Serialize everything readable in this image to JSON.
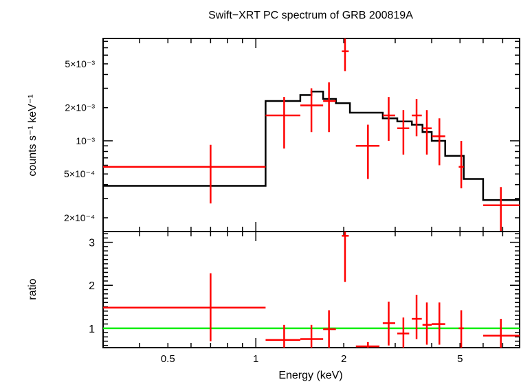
{
  "chart_data": [
    {
      "type": "scatter",
      "title": "Swift−XRT PC spectrum of GRB 200819A",
      "ylabel": "counts s⁻¹ keV⁻¹",
      "yscale": "log",
      "xscale": "log",
      "xlim": [
        0.3,
        8.0
      ],
      "ylim": [
        0.00015,
        0.0085
      ],
      "ytick_labels": [
        {
          "value": 0.005,
          "label": "5×10⁻³"
        },
        {
          "value": 0.002,
          "label": "2×10⁻³"
        },
        {
          "value": 0.001,
          "label": "10⁻³"
        },
        {
          "value": 0.0005,
          "label": "5×10⁻⁴"
        },
        {
          "value": 0.0002,
          "label": "2×10⁻⁴"
        }
      ],
      "data_points": [
        {
          "x": 0.7,
          "xlo": 0.3,
          "xhi": 1.08,
          "y": 0.00058,
          "ylo": 0.00027,
          "yhi": 0.00092
        },
        {
          "x": 1.25,
          "xlo": 1.08,
          "xhi": 1.42,
          "y": 0.0017,
          "ylo": 0.00085,
          "yhi": 0.0025
        },
        {
          "x": 1.55,
          "xlo": 1.42,
          "xhi": 1.7,
          "y": 0.0021,
          "ylo": 0.0012,
          "yhi": 0.003
        },
        {
          "x": 1.78,
          "xlo": 1.7,
          "xhi": 1.88,
          "y": 0.0023,
          "ylo": 0.0012,
          "yhi": 0.0034
        },
        {
          "x": 2.02,
          "xlo": 1.97,
          "xhi": 2.08,
          "y": 0.0065,
          "ylo": 0.0043,
          "yhi": 0.0085
        },
        {
          "x": 2.42,
          "xlo": 2.2,
          "xhi": 2.65,
          "y": 0.0009,
          "ylo": 0.00045,
          "yhi": 0.0014
        },
        {
          "x": 2.85,
          "xlo": 2.72,
          "xhi": 3.0,
          "y": 0.0017,
          "ylo": 0.001,
          "yhi": 0.0025
        },
        {
          "x": 3.2,
          "xlo": 3.05,
          "xhi": 3.35,
          "y": 0.0013,
          "ylo": 0.00075,
          "yhi": 0.0019
        },
        {
          "x": 3.55,
          "xlo": 3.42,
          "xhi": 3.7,
          "y": 0.0017,
          "ylo": 0.0011,
          "yhi": 0.0024
        },
        {
          "x": 3.85,
          "xlo": 3.72,
          "xhi": 4.0,
          "y": 0.0013,
          "ylo": 0.00075,
          "yhi": 0.0019
        },
        {
          "x": 4.25,
          "xlo": 4.0,
          "xhi": 4.45,
          "y": 0.0011,
          "ylo": 0.0006,
          "yhi": 0.0016
        },
        {
          "x": 5.05,
          "xlo": 4.95,
          "xhi": 5.15,
          "y": 0.00058,
          "ylo": 0.00037,
          "yhi": 0.001
        },
        {
          "x": 6.9,
          "xlo": 6.0,
          "xhi": 8.0,
          "y": 0.00026,
          "ylo": 0.00014,
          "yhi": 0.00038
        }
      ],
      "model_steps": [
        {
          "x0": 0.3,
          "x1": 1.08,
          "y": 0.00039
        },
        {
          "x0": 1.08,
          "x1": 1.42,
          "y": 0.0023
        },
        {
          "x0": 1.42,
          "x1": 1.55,
          "y": 0.0026
        },
        {
          "x0": 1.55,
          "x1": 1.7,
          "y": 0.0028
        },
        {
          "x0": 1.7,
          "x1": 1.88,
          "y": 0.0024
        },
        {
          "x0": 1.88,
          "x1": 2.1,
          "y": 0.0022
        },
        {
          "x0": 2.1,
          "x1": 2.72,
          "y": 0.0018
        },
        {
          "x0": 2.72,
          "x1": 3.05,
          "y": 0.0016
        },
        {
          "x0": 3.05,
          "x1": 3.42,
          "y": 0.0015
        },
        {
          "x0": 3.42,
          "x1": 3.72,
          "y": 0.0014
        },
        {
          "x0": 3.72,
          "x1": 4.0,
          "y": 0.0012
        },
        {
          "x0": 4.0,
          "x1": 4.45,
          "y": 0.001
        },
        {
          "x0": 4.45,
          "x1": 5.15,
          "y": 0.00073
        },
        {
          "x0": 5.15,
          "x1": 6.0,
          "y": 0.00045
        },
        {
          "x0": 6.0,
          "x1": 8.0,
          "y": 0.00029
        }
      ],
      "colors": {
        "data": "#ff0000",
        "model": "#000000"
      }
    },
    {
      "type": "scatter",
      "xlabel": "Energy (keV)",
      "ylabel": "ratio",
      "xscale": "log",
      "xlim": [
        0.3,
        8.0
      ],
      "ylim": [
        0.55,
        3.25
      ],
      "xtick_labels": [
        {
          "value": 0.5,
          "label": "0.5"
        },
        {
          "value": 1,
          "label": "1"
        },
        {
          "value": 2,
          "label": "2"
        },
        {
          "value": 5,
          "label": "5"
        }
      ],
      "ytick_labels": [
        {
          "value": 1,
          "label": "1"
        },
        {
          "value": 2,
          "label": "2"
        },
        {
          "value": 3,
          "label": "3"
        }
      ],
      "reference_line": 1.0,
      "data_points": [
        {
          "x": 0.7,
          "xlo": 0.3,
          "xhi": 1.08,
          "y": 1.48,
          "ylo": 0.7,
          "yhi": 2.28
        },
        {
          "x": 1.25,
          "xlo": 1.08,
          "xhi": 1.42,
          "y": 0.73,
          "ylo": 0.55,
          "yhi": 1.08
        },
        {
          "x": 1.55,
          "xlo": 1.42,
          "xhi": 1.7,
          "y": 0.75,
          "ylo": 0.55,
          "yhi": 1.08
        },
        {
          "x": 1.78,
          "xlo": 1.7,
          "xhi": 1.88,
          "y": 0.98,
          "ylo": 0.55,
          "yhi": 1.42
        },
        {
          "x": 2.02,
          "xlo": 1.97,
          "xhi": 2.08,
          "y": 3.15,
          "ylo": 2.08,
          "yhi": 3.25
        },
        {
          "x": 2.42,
          "xlo": 2.2,
          "xhi": 2.65,
          "y": 0.58,
          "ylo": 0.55,
          "yhi": 0.68
        },
        {
          "x": 2.85,
          "xlo": 2.72,
          "xhi": 3.0,
          "y": 1.12,
          "ylo": 0.6,
          "yhi": 1.62
        },
        {
          "x": 3.2,
          "xlo": 3.05,
          "xhi": 3.35,
          "y": 0.88,
          "ylo": 0.55,
          "yhi": 1.25
        },
        {
          "x": 3.55,
          "xlo": 3.42,
          "xhi": 3.7,
          "y": 1.22,
          "ylo": 0.75,
          "yhi": 1.78
        },
        {
          "x": 3.85,
          "xlo": 3.72,
          "xhi": 4.0,
          "y": 1.08,
          "ylo": 0.62,
          "yhi": 1.6
        },
        {
          "x": 4.25,
          "xlo": 4.0,
          "xhi": 4.45,
          "y": 1.1,
          "ylo": 0.62,
          "yhi": 1.6
        },
        {
          "x": 5.05,
          "xlo": 4.95,
          "xhi": 5.15,
          "y": 1.0,
          "ylo": 0.55,
          "yhi": 1.42
        },
        {
          "x": 6.9,
          "xlo": 6.0,
          "xhi": 8.0,
          "y": 0.83,
          "ylo": 0.55,
          "yhi": 1.22
        }
      ],
      "colors": {
        "data": "#ff0000",
        "reference": "#00ee00"
      }
    }
  ]
}
